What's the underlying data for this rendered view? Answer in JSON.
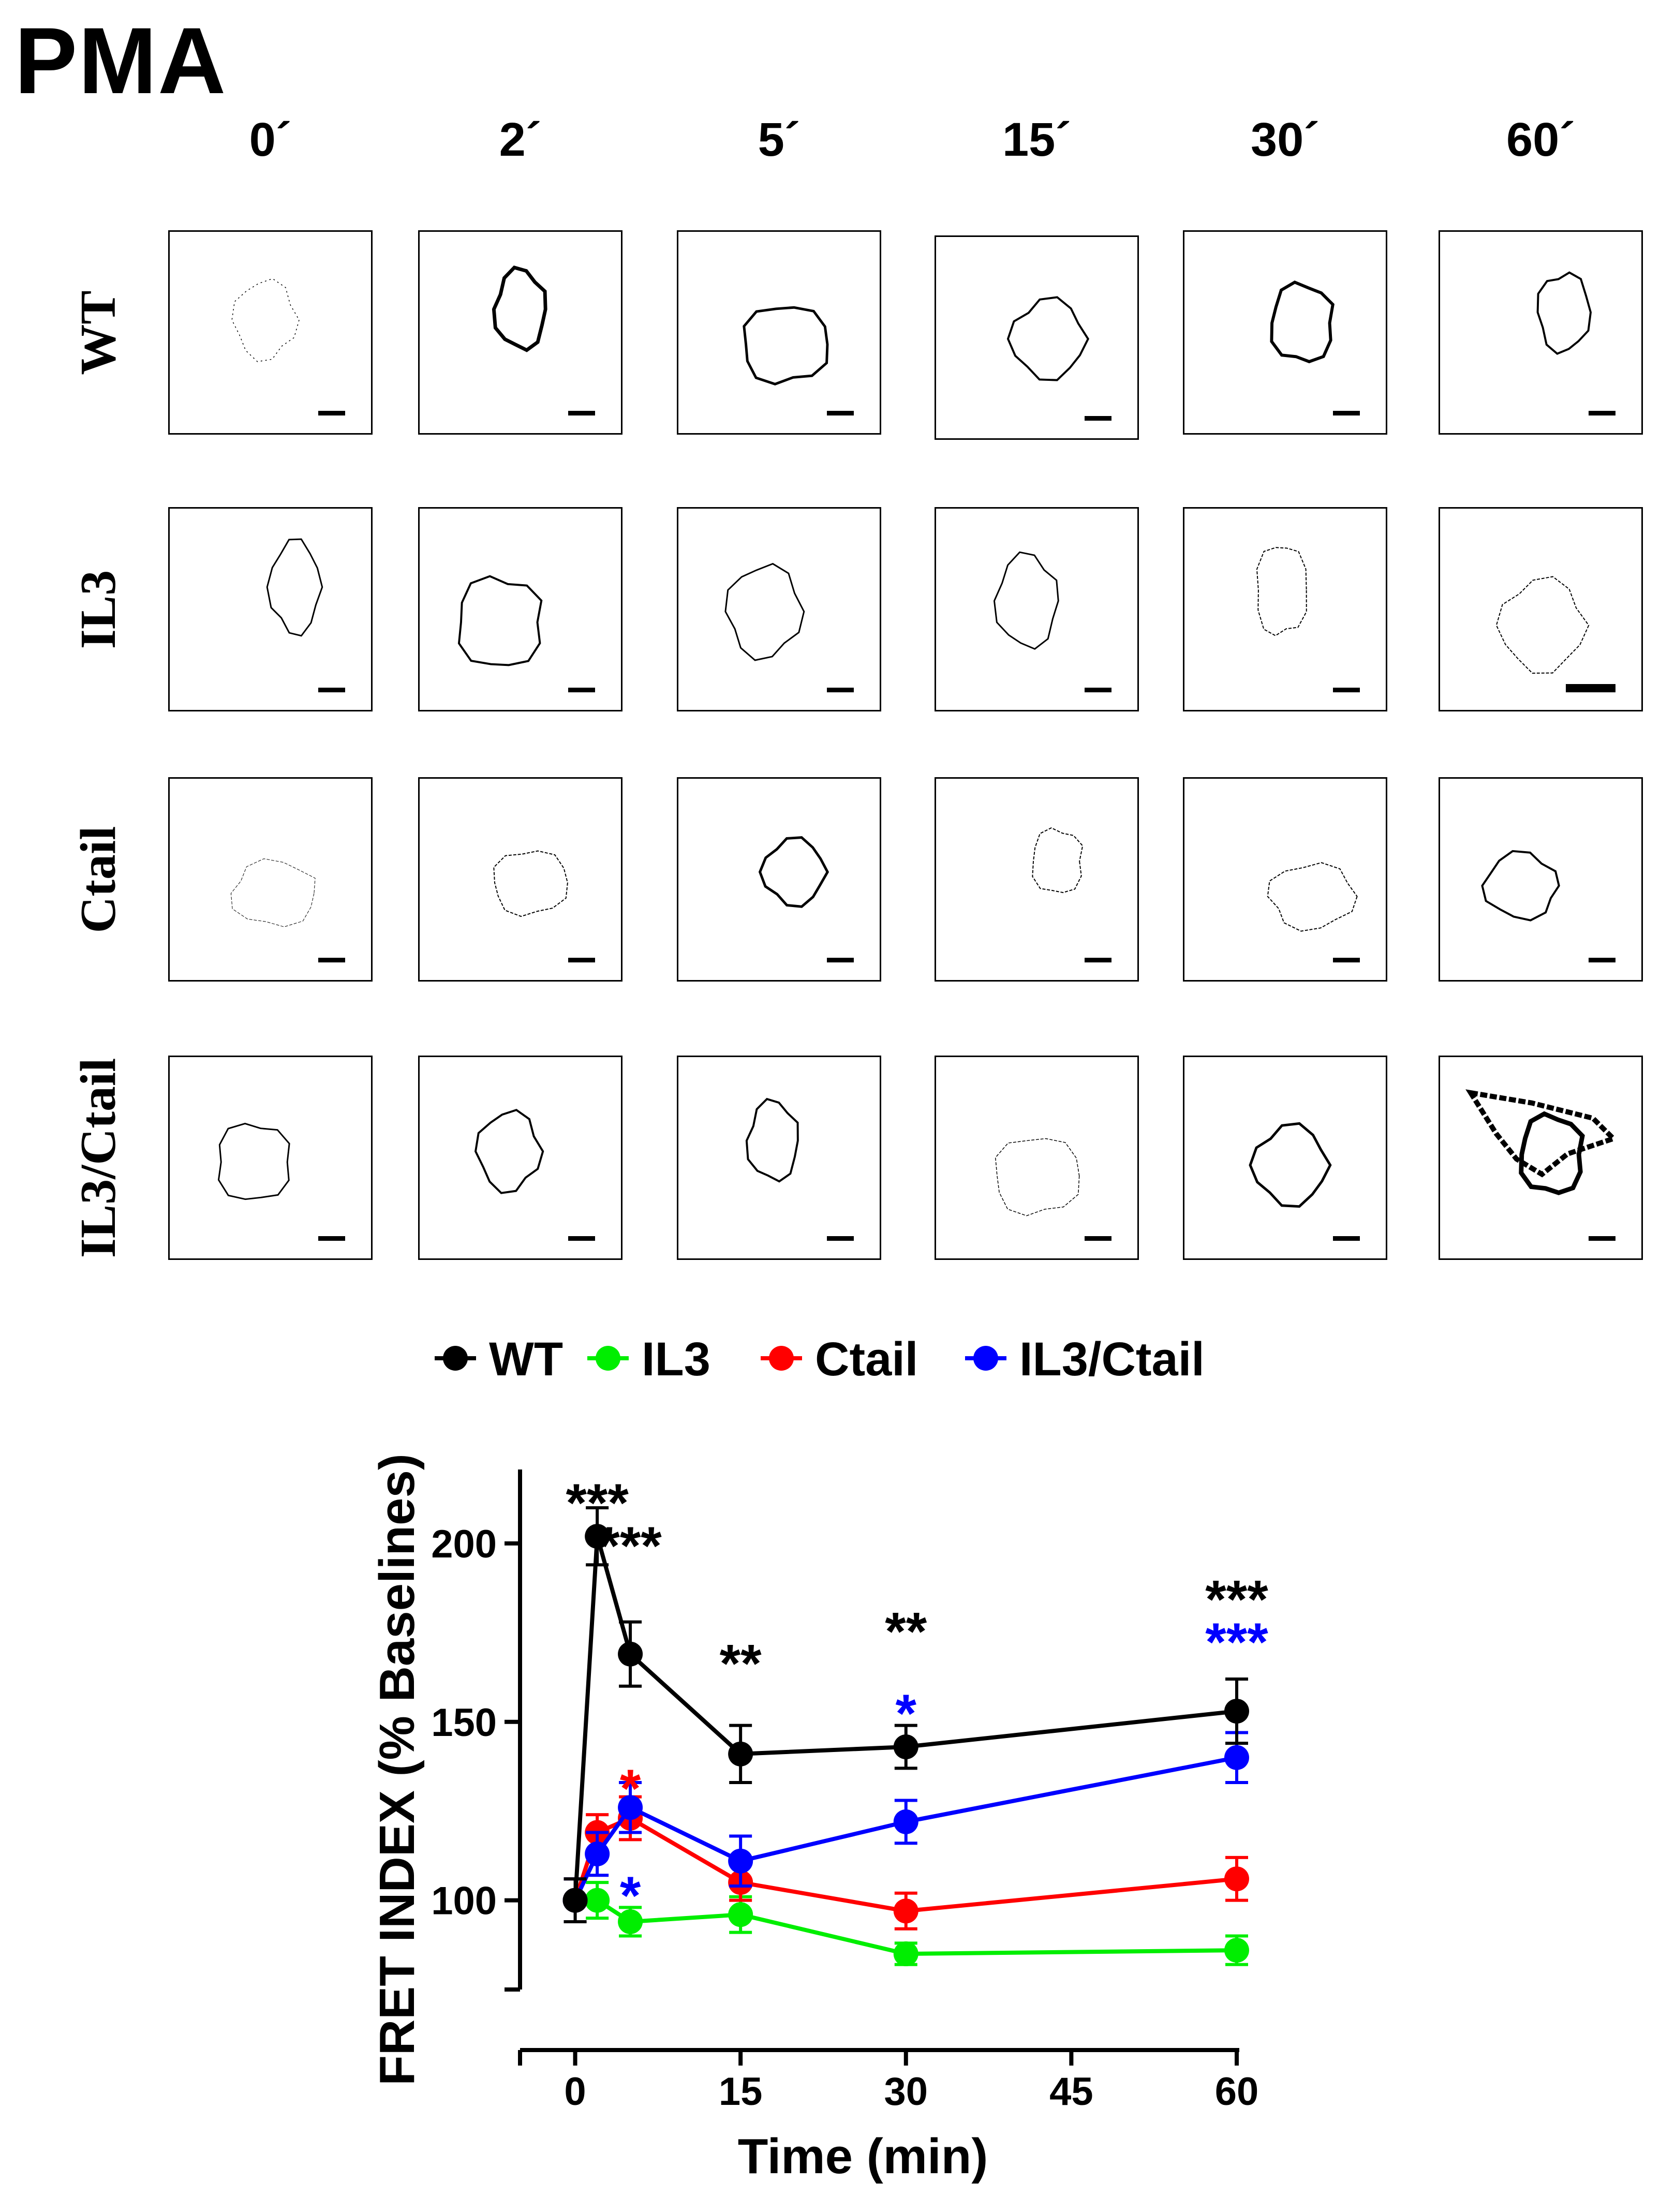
{
  "figure": {
    "title": "PMA",
    "time_columns": [
      "0´",
      "2´",
      "5´",
      "15´",
      "30´",
      "60´"
    ],
    "rows": [
      {
        "label": "WT",
        "panels": 6
      },
      {
        "label": "IL3",
        "panels": 6
      },
      {
        "label": "Ctail",
        "panels": 6
      },
      {
        "label": "IL3/Ctail",
        "panels": 6
      }
    ]
  },
  "chart_data": {
    "type": "line",
    "title": "",
    "xlabel": "Time (min)",
    "ylabel": "FRET INDEX (% Baselines)",
    "xlim": [
      -5,
      60
    ],
    "ylim": [
      75,
      220
    ],
    "x": [
      0,
      2,
      5,
      15,
      30,
      60
    ],
    "xticks": [
      0,
      15,
      30,
      45,
      60
    ],
    "xtick_labels": [
      "0",
      "15",
      "30",
      "45",
      "60"
    ],
    "yticks": [
      100,
      150,
      200
    ],
    "ytick_labels": [
      "100",
      "150",
      "200"
    ],
    "grid": false,
    "legend_position": "top",
    "series": [
      {
        "name": "WT",
        "color": "#000000",
        "values": [
          100,
          202,
          169,
          141,
          143,
          153
        ],
        "errors": [
          6,
          8,
          9,
          8,
          6,
          9
        ]
      },
      {
        "name": "IL3",
        "color": "#00ee00",
        "values": [
          100,
          100,
          94,
          96,
          85,
          86
        ],
        "errors": [
          6,
          5,
          4,
          5,
          3,
          4
        ]
      },
      {
        "name": "Ctail",
        "color": "#ff0000",
        "values": [
          100,
          119,
          123,
          105,
          97,
          106
        ],
        "errors": [
          6,
          5,
          6,
          5,
          5,
          6
        ]
      },
      {
        "name": "IL3/Ctail",
        "color": "#0000ff",
        "values": [
          100,
          113,
          126,
          111,
          122,
          140
        ],
        "errors": [
          6,
          6,
          7,
          7,
          6,
          7
        ]
      }
    ],
    "annotations": [
      {
        "text": "***",
        "x": 2,
        "y": 212,
        "color": "#000000"
      },
      {
        "text": "***",
        "x": 5,
        "y": 200,
        "color": "#000000"
      },
      {
        "text": "**",
        "x": 15,
        "y": 167,
        "color": "#000000"
      },
      {
        "text": "**",
        "x": 30,
        "y": 176,
        "color": "#000000"
      },
      {
        "text": "*",
        "x": 30,
        "y": 153,
        "color": "#0000ff"
      },
      {
        "text": "***",
        "x": 60,
        "y": 185,
        "color": "#000000"
      },
      {
        "text": "***",
        "x": 60,
        "y": 173,
        "color": "#0000ff"
      },
      {
        "text": "*",
        "x": 5,
        "y": 132,
        "color": "#ff0000"
      },
      {
        "text": "*",
        "x": 5,
        "y": 102,
        "color": "#0000ff"
      }
    ]
  }
}
